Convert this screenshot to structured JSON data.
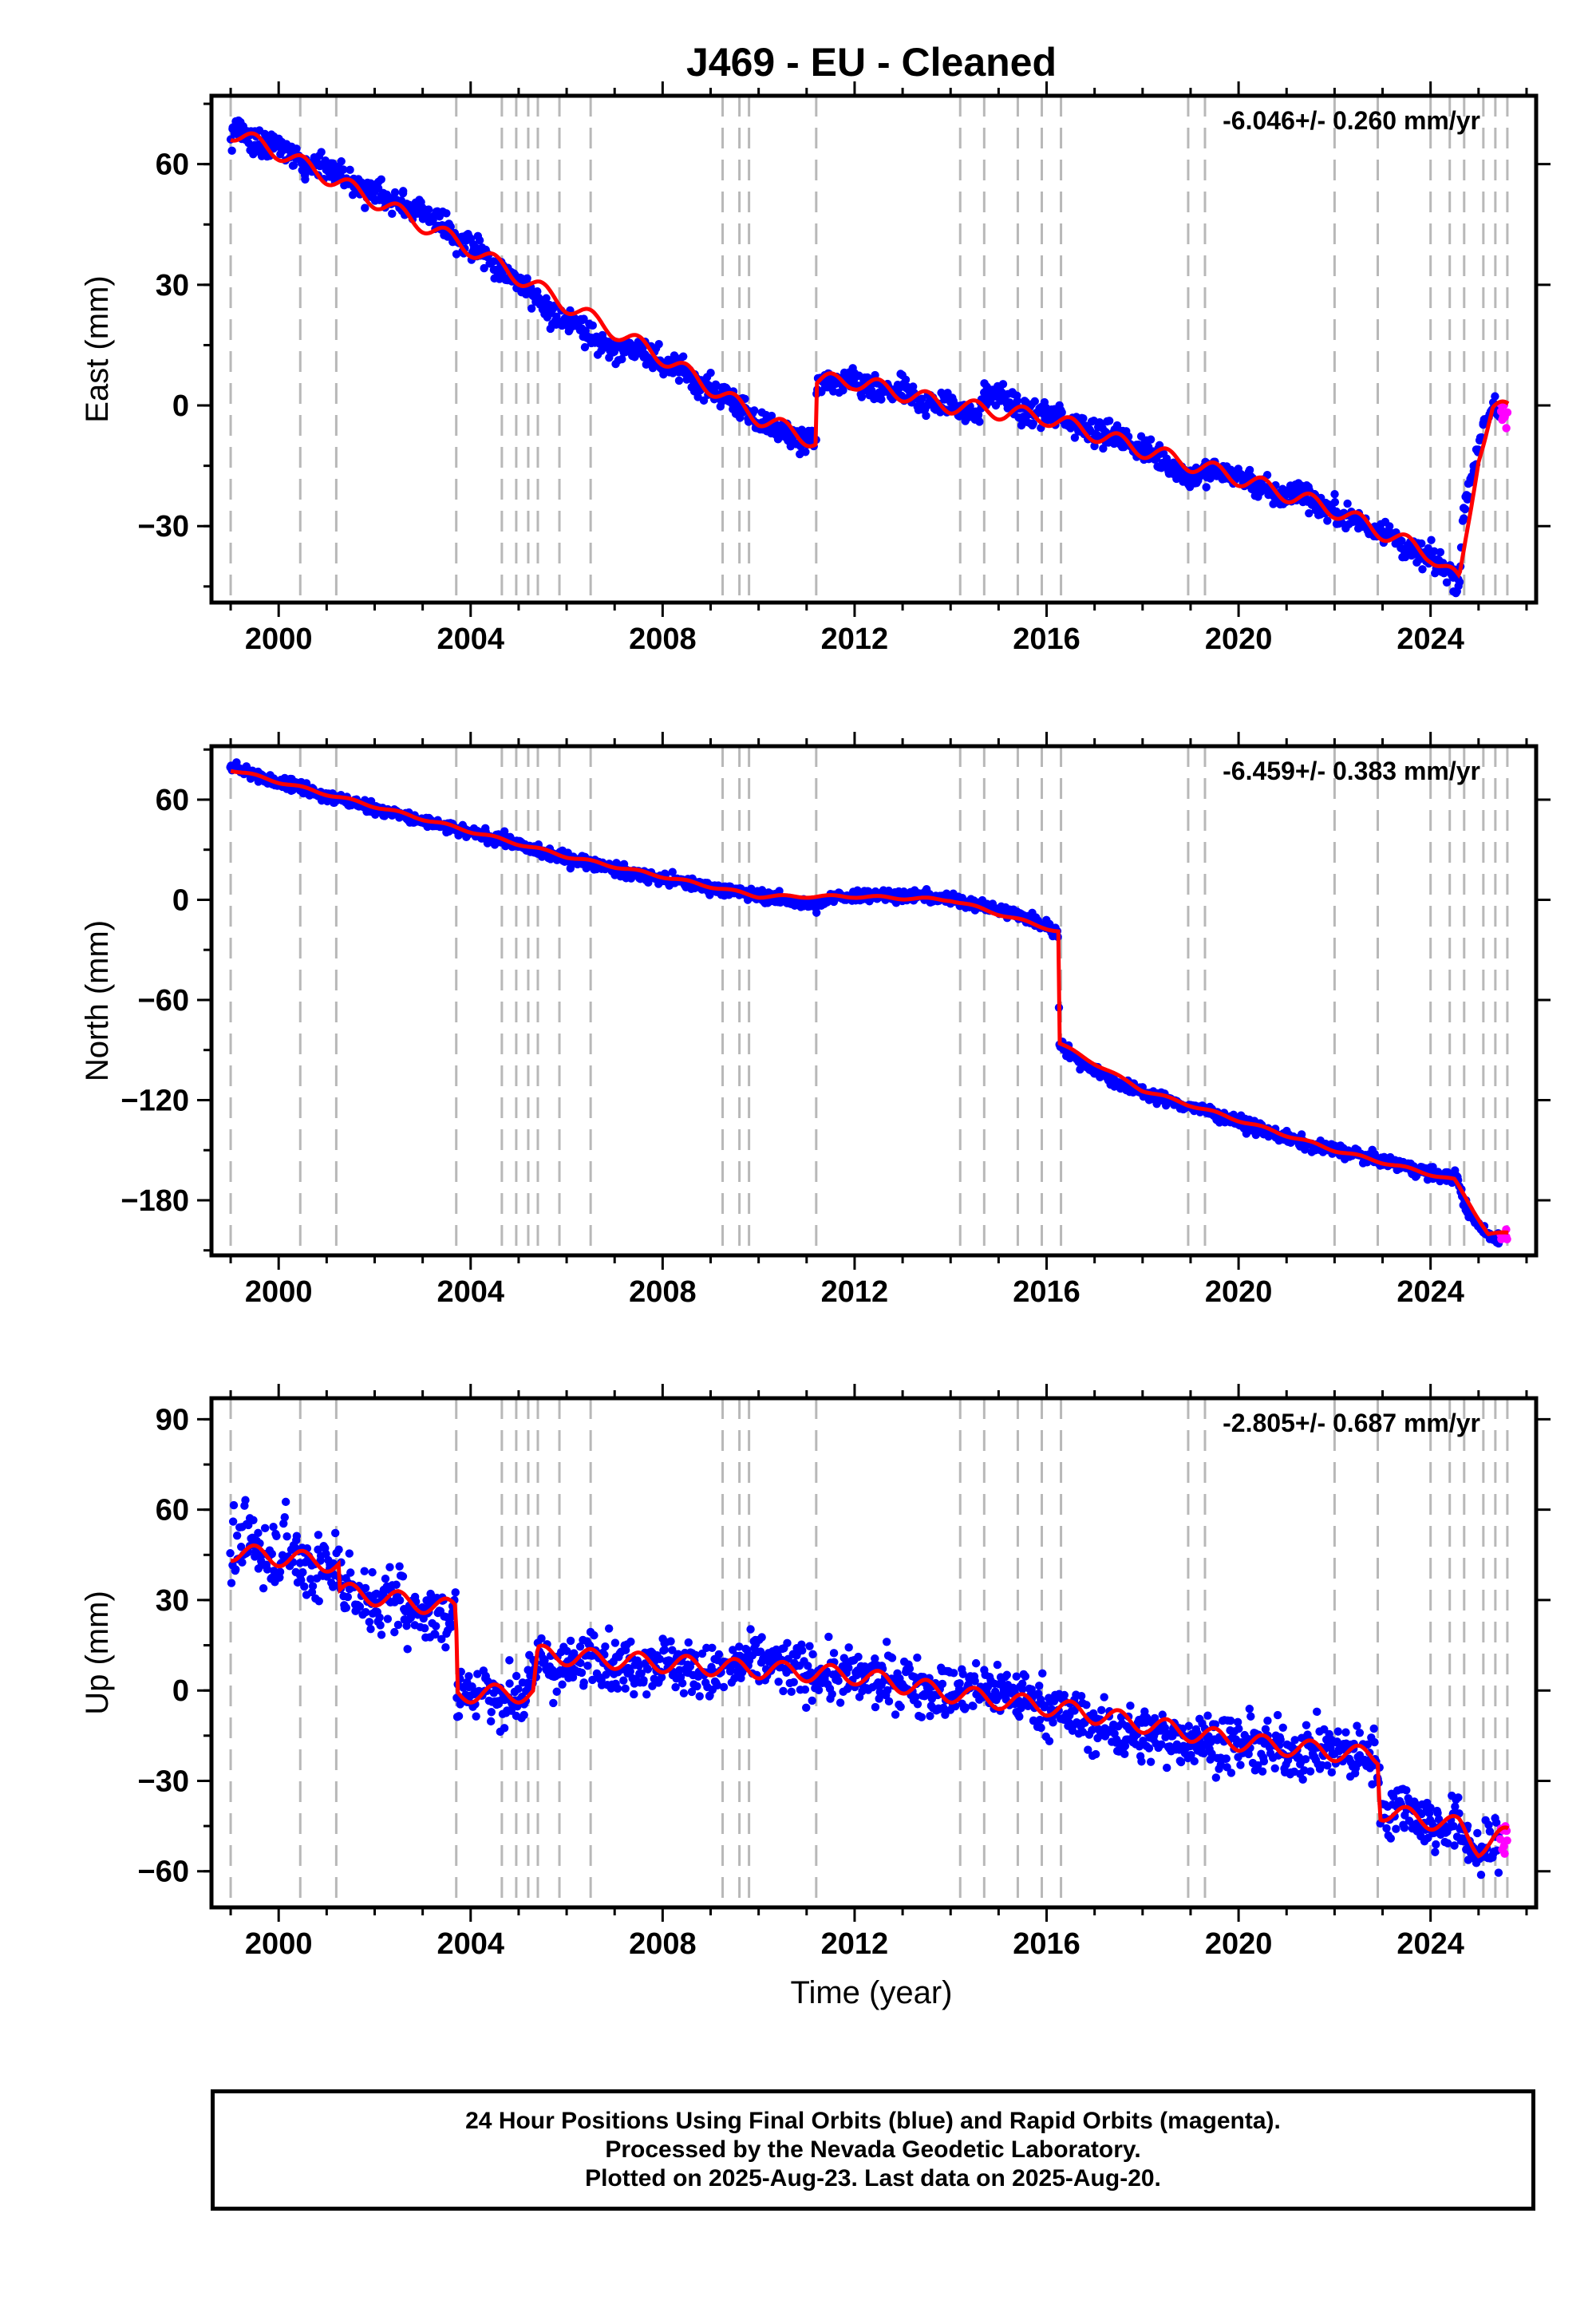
{
  "title": "J469  - EU - Cleaned",
  "xlabel": "Time (year)",
  "colors": {
    "final_orbits": "#0000ff",
    "rapid_orbits": "#ff00ff",
    "model": "#ff0000",
    "event_lines": "#b8b8b8",
    "frame": "#000000"
  },
  "chart_data": [
    {
      "type": "scatter",
      "name": "east",
      "ylabel": "East (mm)",
      "rate_label": "-6.046+/- 0.260 mm/yr",
      "xlim": [
        1998.6,
        2026.2
      ],
      "ylim": [
        -49,
        77
      ],
      "xticks": [
        2000,
        2004,
        2008,
        2012,
        2016,
        2020,
        2024
      ],
      "yticks": [
        -30,
        0,
        30,
        60
      ],
      "model": [
        [
          1999.0,
          66
        ],
        [
          1999.1,
          70
        ],
        [
          1999.35,
          67
        ],
        [
          1999.7,
          64
        ],
        [
          2000.0,
          65
        ],
        [
          2000.3,
          62
        ],
        [
          2000.7,
          60
        ],
        [
          2001.0,
          60
        ],
        [
          2001.3,
          57
        ],
        [
          2001.7,
          54
        ],
        [
          2002.2,
          52
        ],
        [
          2002.6,
          50
        ],
        [
          2003.0,
          48
        ],
        [
          2003.5,
          45
        ],
        [
          2003.7,
          41
        ],
        [
          2004.0,
          40
        ],
        [
          2004.4,
          37
        ],
        [
          2004.6,
          33
        ],
        [
          2004.9,
          32
        ],
        [
          2005.3,
          27
        ],
        [
          2005.7,
          22
        ],
        [
          2006.1,
          22
        ],
        [
          2006.6,
          16
        ],
        [
          2007.0,
          14
        ],
        [
          2007.5,
          14
        ],
        [
          2008.0,
          10
        ],
        [
          2008.5,
          8
        ],
        [
          2009.0,
          4
        ],
        [
          2009.4,
          2
        ],
        [
          2009.9,
          -4
        ],
        [
          2010.3,
          -5
        ],
        [
          2010.8,
          -9
        ],
        [
          2011.2,
          -9
        ],
        [
          2011.21,
          6
        ],
        [
          2011.6,
          5
        ],
        [
          2012.0,
          6
        ],
        [
          2012.5,
          3
        ],
        [
          2013.0,
          4
        ],
        [
          2013.5,
          0
        ],
        [
          2014.0,
          1
        ],
        [
          2014.5,
          -3
        ],
        [
          2014.7,
          2
        ],
        [
          2015.0,
          3
        ],
        [
          2015.5,
          -2
        ],
        [
          2016.0,
          -2
        ],
        [
          2016.5,
          -4
        ],
        [
          2017.0,
          -6
        ],
        [
          2017.5,
          -8
        ],
        [
          2018.0,
          -11
        ],
        [
          2018.5,
          -14
        ],
        [
          2019.0,
          -18
        ],
        [
          2019.4,
          -16
        ],
        [
          2019.9,
          -17
        ],
        [
          2020.3,
          -19
        ],
        [
          2020.8,
          -23
        ],
        [
          2021.3,
          -21
        ],
        [
          2021.7,
          -25
        ],
        [
          2022.2,
          -27
        ],
        [
          2022.7,
          -30
        ],
        [
          2023.1,
          -31
        ],
        [
          2023.5,
          -36
        ],
        [
          2024.0,
          -38
        ],
        [
          2024.4,
          -41
        ],
        [
          2024.6,
          -44
        ],
        [
          2024.7,
          -25
        ],
        [
          2025.0,
          -10
        ],
        [
          2025.3,
          0
        ],
        [
          2025.5,
          -2
        ],
        [
          2025.6,
          -2
        ]
      ],
      "trend": [
        [
          1999.0,
          68
        ],
        [
          2000.0,
          63
        ],
        [
          2002.0,
          51
        ],
        [
          2004.0,
          39
        ],
        [
          2006.0,
          25
        ],
        [
          2008.0,
          12
        ],
        [
          2010.0,
          -3
        ],
        [
          2011.2,
          -9
        ],
        [
          2011.21,
          6
        ],
        [
          2012.0,
          6
        ],
        [
          2014.0,
          0
        ],
        [
          2016.0,
          -3
        ],
        [
          2018.0,
          -11
        ],
        [
          2020.0,
          -18
        ],
        [
          2022.0,
          -26
        ],
        [
          2024.0,
          -37
        ],
        [
          2024.6,
          -44
        ],
        [
          2025.0,
          -12
        ],
        [
          2025.3,
          -1
        ],
        [
          2025.6,
          -1
        ]
      ],
      "scatter_sd": 2.3
    },
    {
      "type": "scatter",
      "name": "north",
      "ylabel": "North (mm)",
      "rate_label": "-6.459+/- 0.383 mm/yr",
      "xlim": [
        1998.6,
        2026.2
      ],
      "ylim": [
        -213,
        92
      ],
      "xticks": [
        2000,
        2004,
        2008,
        2012,
        2016,
        2020,
        2024
      ],
      "yticks": [
        -180,
        -120,
        -60,
        0,
        60
      ],
      "model": [
        [
          1999.0,
          80
        ],
        [
          1999.5,
          74
        ],
        [
          2000.0,
          72
        ],
        [
          2001.0,
          62
        ],
        [
          2002.0,
          55
        ],
        [
          2003.0,
          47
        ],
        [
          2004.0,
          40
        ],
        [
          2004.8,
          35
        ],
        [
          2005.5,
          28
        ],
        [
          2006.5,
          22
        ],
        [
          2007.5,
          15
        ],
        [
          2008.5,
          10
        ],
        [
          2009.5,
          5
        ],
        [
          2010.5,
          0
        ],
        [
          2011.2,
          -4
        ],
        [
          2011.6,
          2
        ],
        [
          2012.5,
          3
        ],
        [
          2013.5,
          2
        ],
        [
          2014.5,
          -2
        ],
        [
          2015.5,
          -10
        ],
        [
          2016.0,
          -16
        ],
        [
          2016.25,
          -20
        ],
        [
          2016.26,
          -85
        ],
        [
          2016.6,
          -95
        ],
        [
          2017.5,
          -110
        ],
        [
          2018.5,
          -120
        ],
        [
          2019.5,
          -128
        ],
        [
          2020.5,
          -138
        ],
        [
          2021.5,
          -147
        ],
        [
          2022.5,
          -153
        ],
        [
          2023.5,
          -160
        ],
        [
          2024.3,
          -166
        ],
        [
          2024.55,
          -166
        ],
        [
          2024.7,
          -183
        ],
        [
          2025.0,
          -195
        ],
        [
          2025.3,
          -203
        ],
        [
          2025.6,
          -200
        ]
      ],
      "trend": [
        [
          1999.0,
          78
        ],
        [
          2002.0,
          56
        ],
        [
          2006.0,
          26
        ],
        [
          2010.0,
          2
        ],
        [
          2012.0,
          2
        ],
        [
          2014.0,
          0
        ],
        [
          2016.25,
          -19
        ],
        [
          2016.26,
          -86
        ],
        [
          2018.0,
          -114
        ],
        [
          2020.0,
          -132
        ],
        [
          2022.0,
          -150
        ],
        [
          2024.5,
          -168
        ],
        [
          2025.2,
          -200
        ],
        [
          2025.6,
          -200
        ]
      ],
      "scatter_sd": 2.6
    },
    {
      "type": "scatter",
      "name": "up",
      "ylabel": "Up (mm)",
      "rate_label": "-2.805+/- 0.687 mm/yr",
      "xlim": [
        1998.6,
        2026.2
      ],
      "ylim": [
        -72,
        97
      ],
      "xticks": [
        2000,
        2004,
        2008,
        2012,
        2016,
        2020,
        2024
      ],
      "yticks": [
        -60,
        -30,
        0,
        30,
        60,
        90
      ],
      "model": [
        [
          1999.0,
          46
        ],
        [
          1999.4,
          50
        ],
        [
          1999.8,
          44
        ],
        [
          2000.2,
          48
        ],
        [
          2000.6,
          40
        ],
        [
          2001.2,
          42
        ],
        [
          2001.25,
          35
        ],
        [
          2001.6,
          34
        ],
        [
          2001.9,
          29
        ],
        [
          2002.5,
          30
        ],
        [
          2002.9,
          25
        ],
        [
          2003.4,
          27
        ],
        [
          2003.7,
          25
        ],
        [
          2003.71,
          -2
        ],
        [
          2004.2,
          1
        ],
        [
          2004.6,
          -3
        ],
        [
          2005.0,
          -2
        ],
        [
          2005.3,
          1
        ],
        [
          2005.4,
          12
        ],
        [
          2005.8,
          6
        ],
        [
          2006.3,
          8
        ],
        [
          2006.5,
          15
        ],
        [
          2007.0,
          8
        ],
        [
          2008.0,
          10
        ],
        [
          2009.0,
          5
        ],
        [
          2010.0,
          10
        ],
        [
          2011.0,
          6
        ],
        [
          2012.0,
          4
        ],
        [
          2013.0,
          3
        ],
        [
          2014.0,
          -1
        ],
        [
          2015.0,
          1
        ],
        [
          2016.0,
          -5
        ],
        [
          2016.3,
          -7
        ],
        [
          2017.0,
          -12
        ],
        [
          2018.0,
          -15
        ],
        [
          2019.0,
          -16
        ],
        [
          2020.0,
          -18
        ],
        [
          2021.0,
          -20
        ],
        [
          2022.0,
          -20
        ],
        [
          2022.9,
          -22
        ],
        [
          2022.95,
          -40
        ],
        [
          2023.5,
          -38
        ],
        [
          2024.0,
          -45
        ],
        [
          2024.6,
          -45
        ],
        [
          2025.0,
          -55
        ],
        [
          2025.6,
          -48
        ]
      ],
      "trend": [
        [
          1999.0,
          46
        ],
        [
          2001.25,
          42
        ],
        [
          2001.26,
          33
        ],
        [
          2003.7,
          27
        ],
        [
          2003.71,
          -1
        ],
        [
          2005.3,
          -1
        ],
        [
          2005.4,
          12
        ],
        [
          2008.0,
          9
        ],
        [
          2012.0,
          5
        ],
        [
          2014.0,
          -1
        ],
        [
          2016.3,
          -6
        ],
        [
          2020.0,
          -17
        ],
        [
          2022.9,
          -22
        ],
        [
          2022.95,
          -40
        ],
        [
          2024.6,
          -45
        ],
        [
          2025.0,
          -52
        ],
        [
          2025.6,
          -48
        ]
      ],
      "scatter_sd": 6.5
    }
  ],
  "event_lines": [
    1999.0,
    2000.45,
    2001.2,
    2003.7,
    2004.65,
    2004.95,
    2005.2,
    2005.4,
    2005.85,
    2006.5,
    2009.25,
    2009.6,
    2009.8,
    2011.2,
    2014.2,
    2014.7,
    2015.4,
    2015.9,
    2016.3,
    2018.95,
    2019.3,
    2022.0,
    2022.9,
    2024.0,
    2024.4,
    2024.7,
    2025.1,
    2025.35,
    2025.6
  ],
  "footer": [
    "24 Hour Positions Using Final Orbits (blue) and Rapid Orbits (magenta).",
    "Processed by the Nevada Geodetic Laboratory.",
    "Plotted on 2025-Aug-23. Last data on 2025-Aug-20."
  ]
}
